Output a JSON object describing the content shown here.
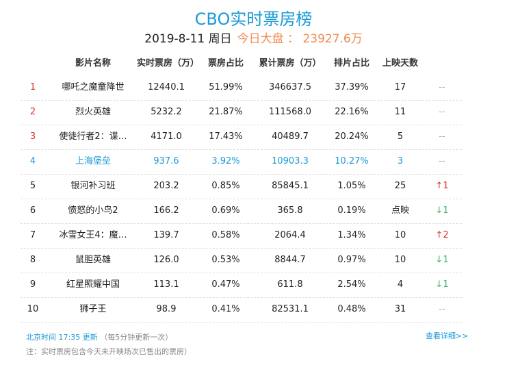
{
  "title": "CBO实时票房榜",
  "date": "2019-8-11 周日",
  "total_label": "今日大盘 ： 23927.6万",
  "headers": [
    "影片名称",
    "实时票房（万）",
    "票房占比",
    "累计票房（万）",
    "排片占比",
    "上映天数"
  ],
  "rows": [
    {
      "rank": "1",
      "name": "哪吒之魔童降世",
      "rt": "12440.1",
      "share": "51.99%",
      "total": "346637.5",
      "screen": "37.39%",
      "days": "17",
      "change": "--",
      "dir": "none"
    },
    {
      "rank": "2",
      "name": "烈火英雄",
      "rt": "5232.2",
      "share": "21.87%",
      "total": "111568.0",
      "screen": "22.16%",
      "days": "11",
      "change": "--",
      "dir": "none"
    },
    {
      "rank": "3",
      "name": "使徒行者2：谍…",
      "rt": "4171.0",
      "share": "17.43%",
      "total": "40489.7",
      "screen": "20.24%",
      "days": "5",
      "change": "--",
      "dir": "none"
    },
    {
      "rank": "4",
      "name": "上海堡垒",
      "rt": "937.6",
      "share": "3.92%",
      "total": "10903.3",
      "screen": "10.27%",
      "days": "3",
      "change": "--",
      "dir": "none",
      "highlight": true
    },
    {
      "rank": "5",
      "name": "银河补习班",
      "rt": "203.2",
      "share": "0.85%",
      "total": "85845.1",
      "screen": "1.05%",
      "days": "25",
      "change": "1",
      "dir": "up"
    },
    {
      "rank": "6",
      "name": "愤怒的小鸟2",
      "rt": "166.2",
      "share": "0.69%",
      "total": "365.8",
      "screen": "0.19%",
      "days": "点映",
      "change": "1",
      "dir": "down"
    },
    {
      "rank": "7",
      "name": "冰雪女王4：魔…",
      "rt": "139.7",
      "share": "0.58%",
      "total": "2064.4",
      "screen": "1.34%",
      "days": "10",
      "change": "2",
      "dir": "up"
    },
    {
      "rank": "8",
      "name": "鼠胆英雄",
      "rt": "126.0",
      "share": "0.53%",
      "total": "8844.7",
      "screen": "0.97%",
      "days": "10",
      "change": "1",
      "dir": "down"
    },
    {
      "rank": "9",
      "name": "红星照耀中国",
      "rt": "113.1",
      "share": "0.47%",
      "total": "611.8",
      "screen": "2.54%",
      "days": "4",
      "change": "1",
      "dir": "down"
    },
    {
      "rank": "10",
      "name": "狮子王",
      "rt": "98.9",
      "share": "0.41%",
      "total": "82531.1",
      "screen": "0.48%",
      "days": "31",
      "change": "--",
      "dir": "none"
    }
  ],
  "footer": {
    "update": "北京时间 17:35 更新",
    "interval": "（每5分钟更新一次）",
    "note": "注：实时票房包含今天未开映场次已售出的票房）",
    "more": "查看详细>>"
  },
  "colors": {
    "accent": "#1a9ad6",
    "orange": "#f08b4f",
    "up": "#d9342b",
    "down": "#3cb371"
  }
}
